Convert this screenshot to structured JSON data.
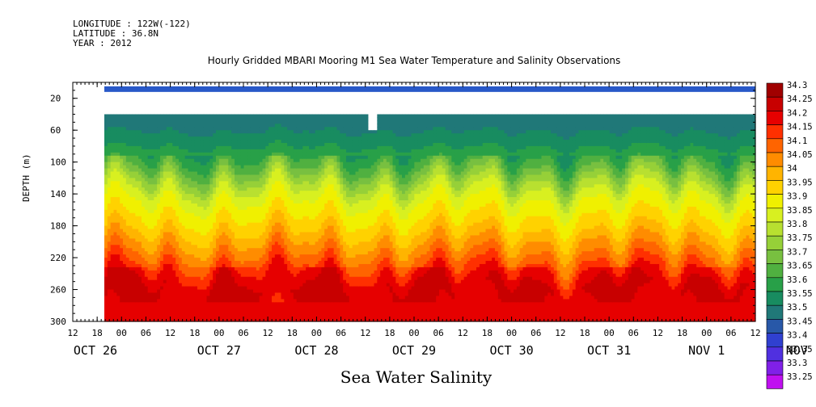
{
  "meta": {
    "longitude": "LONGITUDE : 122W(-122)",
    "latitude": "LATITUDE : 36.8N",
    "year": "YEAR : 2012"
  },
  "chart_data": {
    "type": "heatmap",
    "title": "Hourly Gridded MBARI Mooring M1 Sea Water Temperature and Salinity Observations",
    "xlabel": "",
    "ylabel": "DEPTH (m)",
    "bottom_title": "Sea Water Salinity",
    "y_ticks": [
      20,
      60,
      100,
      140,
      180,
      220,
      260,
      300
    ],
    "ylim": [
      300,
      0
    ],
    "x_hour_ticks": [
      "12",
      "18",
      "00",
      "06",
      "12",
      "18",
      "00",
      "06",
      "12",
      "18",
      "00",
      "06",
      "12",
      "18",
      "00",
      "06",
      "12",
      "18",
      "00",
      "06",
      "12",
      "18",
      "00",
      "06",
      "12",
      "18",
      "00",
      "06",
      "12"
    ],
    "x_day_labels": [
      "OCT 26",
      "OCT 27",
      "OCT 28",
      "OCT 29",
      "OCT 30",
      "OCT 31",
      "NOV  1",
      "NOV  2"
    ],
    "colorbar": {
      "levels": [
        "34.3",
        "34.25",
        "34.2",
        "34.15",
        "34.1",
        "34.05",
        "34",
        "33.95",
        "33.9",
        "33.85",
        "33.8",
        "33.75",
        "33.7",
        "33.65",
        "33.6",
        "33.55",
        "33.5",
        "33.45",
        "33.4",
        "33.35",
        "33.3",
        "33.25"
      ],
      "colors": [
        "#a00000",
        "#c80000",
        "#e60000",
        "#ff3000",
        "#ff6400",
        "#ff8c00",
        "#ffb400",
        "#ffd200",
        "#f0f000",
        "#d8f020",
        "#b8e030",
        "#96d038",
        "#78c040",
        "#50b040",
        "#28a048",
        "#188c60",
        "#207878",
        "#2858a8",
        "#3040d0",
        "#5030e0",
        "#8020e8",
        "#c010f0"
      ]
    },
    "depth_profile": [
      {
        "depth": 10,
        "value": 33.45
      },
      {
        "depth": 40,
        "value": 33.52
      },
      {
        "depth": 60,
        "value": 33.55
      },
      {
        "depth": 80,
        "value": 33.6
      },
      {
        "depth": 100,
        "value": 33.67
      },
      {
        "depth": 120,
        "value": 33.78
      },
      {
        "depth": 140,
        "value": 33.88
      },
      {
        "depth": 160,
        "value": 33.93
      },
      {
        "depth": 180,
        "value": 33.98
      },
      {
        "depth": 200,
        "value": 34.05
      },
      {
        "depth": 220,
        "value": 34.12
      },
      {
        "depth": 240,
        "value": 34.2
      },
      {
        "depth": 260,
        "value": 34.25
      },
      {
        "depth": 280,
        "value": 34.22
      },
      {
        "depth": 300,
        "value": 34.2
      }
    ]
  }
}
